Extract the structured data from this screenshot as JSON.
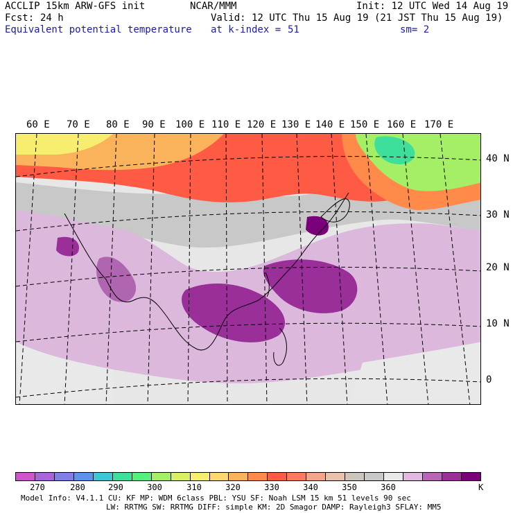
{
  "header": {
    "model_line": "ACCLIP 15km ARW-GFS init",
    "org": "NCAR/MMM",
    "init": "Init: 12 UTC Wed 14 Aug 19",
    "fcst_label": "Fcst:",
    "fcst_value": "24 h",
    "valid": "Valid: 12 UTC Thu 15 Aug 19 (21 JST Thu 15 Aug 19)",
    "field": "Equivalent potential temperature",
    "level": "at k-index =",
    "level_value": "51",
    "smooth": "sm= 2"
  },
  "map": {
    "lon_labels": [
      "60 E",
      "70 E",
      "80 E",
      "90 E",
      "100 E",
      "110 E",
      "120 E",
      "130 E",
      "140 E",
      "150 E",
      "160 E",
      "170 E"
    ],
    "lat_labels": [
      "40 N",
      "30 N",
      "20 N",
      "10 N",
      "0"
    ],
    "regions": [
      {
        "kind": "background",
        "color": "#e7e7e7"
      },
      {
        "kind": "north-warm",
        "color": "#ff6b4a"
      },
      {
        "kind": "northeast-cool",
        "color": "#c7f57f"
      }
    ]
  },
  "colorbar": {
    "colors": [
      "#cc55cc",
      "#a964d8",
      "#7f7fe6",
      "#5c93ec",
      "#3dc7d6",
      "#3ddf9a",
      "#55ef7f",
      "#a4ef66",
      "#d9f066",
      "#f7ed6f",
      "#fbd870",
      "#fbb35b",
      "#ff8a4a",
      "#ff5a44",
      "#ff7a5d",
      "#f4a68a",
      "#e9c2ae",
      "#cdc4bb",
      "#c8c8c8",
      "#e9e9e9",
      "#e0b8e0",
      "#b865b8",
      "#9a2f9a",
      "#790079"
    ],
    "ticks": [
      "270",
      "280",
      "290",
      "300",
      "310",
      "320",
      "330",
      "340",
      "350",
      "360"
    ],
    "unit": "K"
  },
  "footer": {
    "line1": "Model Info: V4.1.1    CU: KF      MP: WDM 6class  PBL: YSU      SF: Noah LSM   15 km   51 levels   90 sec",
    "line2": "LW: RRTMG   SW: RRTMG  DIFF: simple KM: 2D Smagor DAMP: Rayleigh3  SFLAY: MM5"
  }
}
